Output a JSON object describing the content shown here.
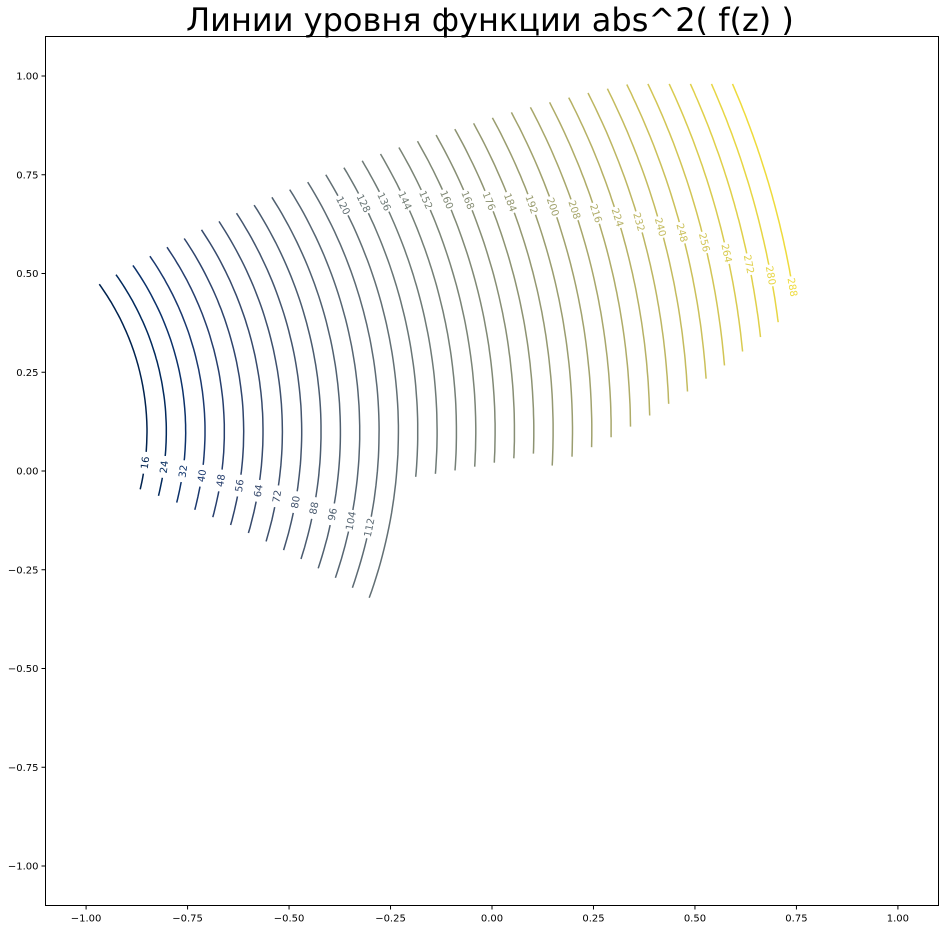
{
  "chart_data": {
    "type": "contour",
    "title": "Линии уровня функции abs^2( f(z) )",
    "colormap": "cividis",
    "xlim": [
      -1.1,
      1.1
    ],
    "ylim": [
      -1.1,
      1.1
    ],
    "xticks": [
      -1.0,
      -0.75,
      -0.5,
      -0.25,
      0.0,
      0.25,
      0.5,
      0.75,
      1.0
    ],
    "yticks": [
      -1.0,
      -0.75,
      -0.5,
      -0.25,
      0.0,
      0.25,
      0.5,
      0.75,
      1.0
    ],
    "xtick_labels": [
      "−1.00",
      "−0.75",
      "−0.50",
      "−0.25",
      "0.00",
      "0.25",
      "0.50",
      "0.75",
      "1.00"
    ],
    "ytick_labels": [
      "−1.00",
      "−0.75",
      "−0.50",
      "−0.25",
      "0.00",
      "0.25",
      "0.50",
      "0.75",
      "1.00"
    ],
    "grid": false,
    "level_range": [
      16,
      288
    ],
    "levels": [
      {
        "value": 16,
        "label": "16",
        "color": "#00224e"
      },
      {
        "value": 24,
        "label": "24",
        "color": "#01295c"
      },
      {
        "value": 32,
        "label": "32",
        "color": "#0b316a"
      },
      {
        "value": 40,
        "label": "40",
        "color": "#1a386e"
      },
      {
        "value": 48,
        "label": "48",
        "color": "#263e6d"
      },
      {
        "value": 56,
        "label": "56",
        "color": "#2f446c"
      },
      {
        "value": 64,
        "label": "64",
        "color": "#374a6c"
      },
      {
        "value": 72,
        "label": "72",
        "color": "#3e506d"
      },
      {
        "value": 80,
        "label": "80",
        "color": "#44556e"
      },
      {
        "value": 88,
        "label": "88",
        "color": "#4a5b6f"
      },
      {
        "value": 96,
        "label": "96",
        "color": "#506070"
      },
      {
        "value": 104,
        "label": "104",
        "color": "#566572"
      },
      {
        "value": 112,
        "label": "112",
        "color": "#5c6a73"
      },
      {
        "value": 120,
        "label": "120",
        "color": "#626f74"
      },
      {
        "value": 128,
        "label": "128",
        "color": "#687575"
      },
      {
        "value": 136,
        "label": "136",
        "color": "#6e7a76"
      },
      {
        "value": 144,
        "label": "144",
        "color": "#747f76"
      },
      {
        "value": 152,
        "label": "152",
        "color": "#7a8476"
      },
      {
        "value": 160,
        "label": "160",
        "color": "#808975"
      },
      {
        "value": 168,
        "label": "168",
        "color": "#878e74"
      },
      {
        "value": 176,
        "label": "176",
        "color": "#8d9372"
      },
      {
        "value": 184,
        "label": "184",
        "color": "#949871"
      },
      {
        "value": 192,
        "label": "192",
        "color": "#9a9d6f"
      },
      {
        "value": 200,
        "label": "200",
        "color": "#a1a26d"
      },
      {
        "value": 208,
        "label": "208",
        "color": "#a8a76b"
      },
      {
        "value": 216,
        "label": "216",
        "color": "#afac68"
      },
      {
        "value": 224,
        "label": "224",
        "color": "#b6b165"
      },
      {
        "value": 232,
        "label": "232",
        "color": "#bdb662"
      },
      {
        "value": 240,
        "label": "240",
        "color": "#c4bb5e"
      },
      {
        "value": 248,
        "label": "248",
        "color": "#cbc05a"
      },
      {
        "value": 256,
        "label": "256",
        "color": "#d2c555"
      },
      {
        "value": 264,
        "label": "264",
        "color": "#d9cb50"
      },
      {
        "value": 272,
        "label": "272",
        "color": "#e0d04a"
      },
      {
        "value": 280,
        "label": "280",
        "color": "#e7d644"
      },
      {
        "value": 288,
        "label": "288",
        "color": "#eedb3c"
      }
    ]
  }
}
